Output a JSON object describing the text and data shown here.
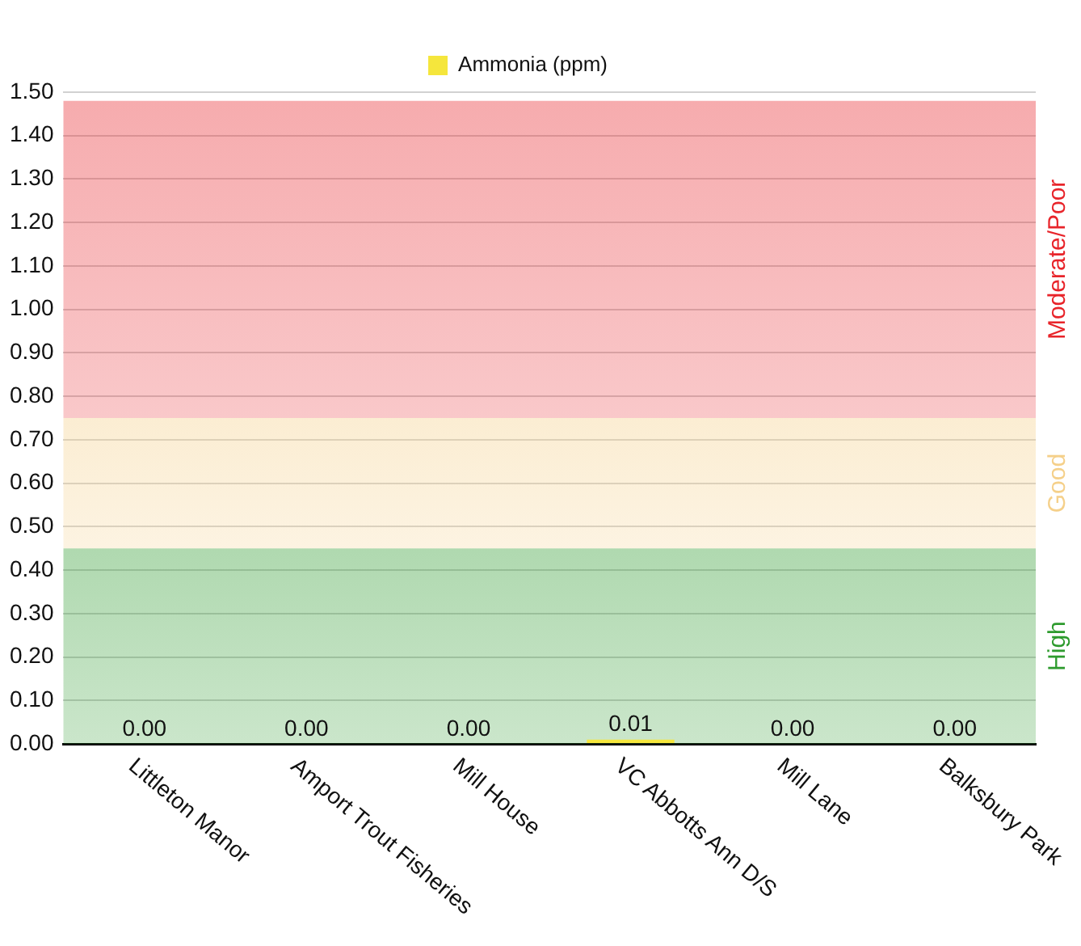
{
  "chart_data": {
    "type": "bar",
    "categories": [
      "Littleton Manor",
      "Amport Trout Fisheries",
      "Mill House",
      "VC Abbotts Ann D/S",
      "Mill Lane",
      "Balksbury Park"
    ],
    "series": [
      {
        "name": "Ammonia (ppm)",
        "color": "#f5e63c",
        "values": [
          0,
          0,
          0,
          0.01,
          0,
          0
        ],
        "value_labels": [
          "0.00",
          "0.00",
          "0.00",
          "0.01",
          "0.00",
          "0.00"
        ]
      }
    ],
    "ylim": [
      0,
      1.5
    ],
    "yticks": [
      {
        "value": 0,
        "label": "0.00"
      },
      {
        "value": 0.1,
        "label": "0.10"
      },
      {
        "value": 0.2,
        "label": "0.20"
      },
      {
        "value": 0.3,
        "label": "0.30"
      },
      {
        "value": 0.4,
        "label": "0.40"
      },
      {
        "value": 0.5,
        "label": "0.50"
      },
      {
        "value": 0.6,
        "label": "0.60"
      },
      {
        "value": 0.7,
        "label": "0.70"
      },
      {
        "value": 0.8,
        "label": "0.80"
      },
      {
        "value": 0.9,
        "label": "0.90"
      },
      {
        "value": 1,
        "label": "1.00"
      },
      {
        "value": 1.1,
        "label": "1.10"
      },
      {
        "value": 1.2,
        "label": "1.20"
      },
      {
        "value": 1.3,
        "label": "1.30"
      },
      {
        "value": 1.4,
        "label": "1.40"
      },
      {
        "value": 1.5,
        "label": "1.50"
      }
    ],
    "bands": [
      {
        "axis": "y",
        "from": 0,
        "to": 0.45,
        "label": "High",
        "color": "#2e9b2e"
      },
      {
        "axis": "y",
        "from": 0.45,
        "to": 0.75,
        "label": "Good",
        "color": "#f5d08a"
      },
      {
        "axis": "y",
        "from": 0.75,
        "to": 1.48,
        "label": "Moderate/Poor",
        "color": "#e8242a"
      }
    ],
    "grid": "y",
    "legend": "top"
  }
}
